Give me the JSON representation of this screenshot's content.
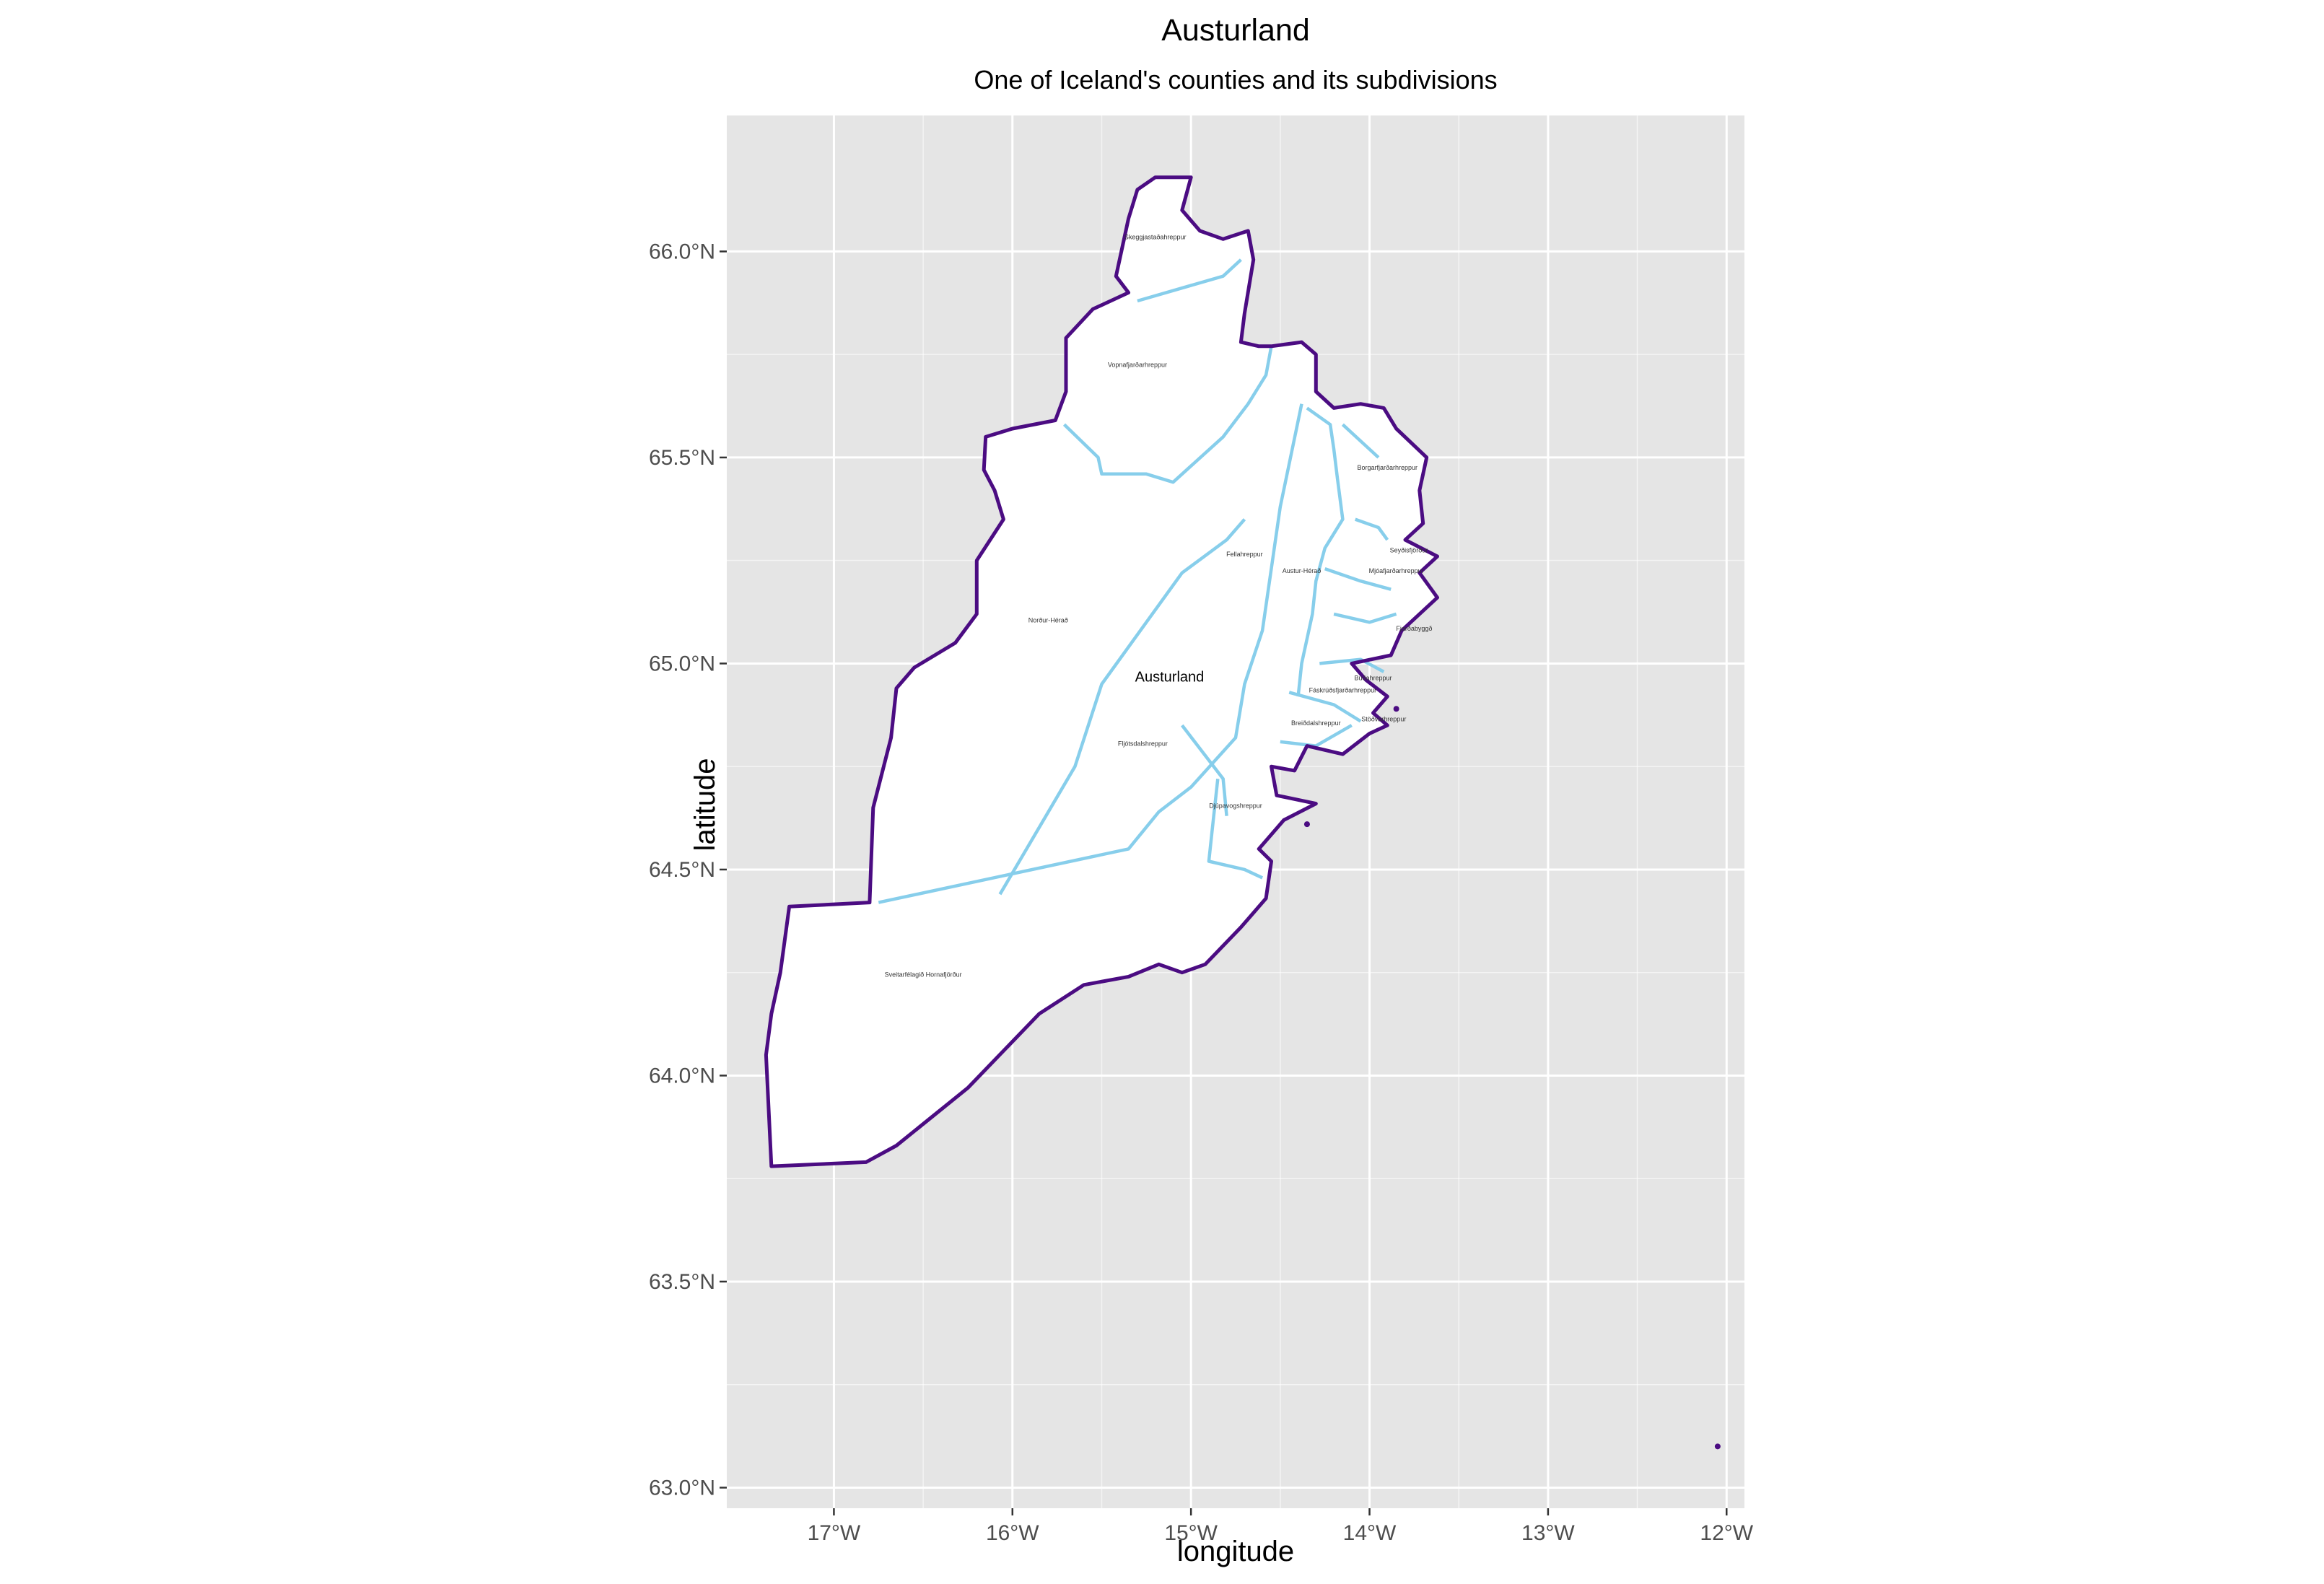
{
  "title": "Austurland",
  "subtitle": "One of Iceland's counties and its subdivisions",
  "x_axis": {
    "label": "longitude",
    "ticks": [
      "17°W",
      "16°W",
      "15°W",
      "14°W",
      "13°W",
      "12°W"
    ]
  },
  "y_axis": {
    "label": "latitude",
    "ticks": [
      "63.0°N",
      "63.5°N",
      "64.0°N",
      "64.5°N",
      "65.0°N",
      "65.5°N",
      "66.0°N"
    ]
  },
  "county_label": "Austurland",
  "subdivision_labels": [
    "Skeggjastaðahreppur",
    "Vopnafjarðarhreppur",
    "Borgarfjarðarhreppur",
    "Seyðisfjörður",
    "Fellahreppur",
    "Austur-Hérað",
    "Mjóafjarðarhreppur",
    "Norður-Hérað",
    "Fjarðabyggð",
    "Búðahreppur",
    "Fáskrúðsfjarðarhreppur",
    "Breiðdalshreppur",
    "Stöðvarhreppur",
    "Fljótsdalshreppur",
    "Djúpavogshreppur",
    "Sveitarfélagið Hornafjörður"
  ],
  "colors": {
    "panel_background": "#e5e5e5",
    "gridline": "#ffffff",
    "county_outline": "#4b0c82",
    "subdivision_outline": "#87ceeb",
    "land_fill": "#ffffff"
  },
  "map_data": {
    "lon_range": [
      -17.6,
      -11.9
    ],
    "lat_range": [
      62.95,
      66.33
    ],
    "county_outline": [
      [
        -17.35,
        63.78
      ],
      [
        -16.82,
        63.79
      ],
      [
        -16.65,
        63.83
      ],
      [
        -16.45,
        63.9
      ],
      [
        -16.25,
        63.97
      ],
      [
        -16.05,
        64.06
      ],
      [
        -15.85,
        64.15
      ],
      [
        -15.6,
        64.22
      ],
      [
        -15.35,
        64.24
      ],
      [
        -15.18,
        64.27
      ],
      [
        -15.05,
        64.25
      ],
      [
        -14.92,
        64.27
      ],
      [
        -14.72,
        64.36
      ],
      [
        -14.58,
        64.43
      ],
      [
        -14.55,
        64.52
      ],
      [
        -14.62,
        64.55
      ],
      [
        -14.48,
        64.62
      ],
      [
        -14.3,
        64.66
      ],
      [
        -14.52,
        64.68
      ],
      [
        -14.55,
        64.75
      ],
      [
        -14.42,
        64.74
      ],
      [
        -14.35,
        64.8
      ],
      [
        -14.15,
        64.78
      ],
      [
        -14.0,
        64.83
      ],
      [
        -13.9,
        64.85
      ],
      [
        -13.98,
        64.88
      ],
      [
        -13.9,
        64.92
      ],
      [
        -14.02,
        64.96
      ],
      [
        -14.1,
        65.0
      ],
      [
        -13.88,
        65.02
      ],
      [
        -13.82,
        65.08
      ],
      [
        -13.72,
        65.12
      ],
      [
        -13.62,
        65.16
      ],
      [
        -13.72,
        65.22
      ],
      [
        -13.62,
        65.26
      ],
      [
        -13.8,
        65.3
      ],
      [
        -13.7,
        65.34
      ],
      [
        -13.72,
        65.42
      ],
      [
        -13.68,
        65.5
      ],
      [
        -13.85,
        65.57
      ],
      [
        -13.92,
        65.62
      ],
      [
        -14.05,
        65.63
      ],
      [
        -14.2,
        65.62
      ],
      [
        -14.3,
        65.66
      ],
      [
        -14.3,
        65.75
      ],
      [
        -14.38,
        65.78
      ],
      [
        -14.55,
        65.77
      ],
      [
        -14.62,
        65.77
      ],
      [
        -14.72,
        65.78
      ],
      [
        -14.7,
        65.85
      ],
      [
        -14.65,
        65.98
      ],
      [
        -14.68,
        66.05
      ],
      [
        -14.82,
        66.03
      ],
      [
        -14.95,
        66.05
      ],
      [
        -15.05,
        66.1
      ],
      [
        -15.0,
        66.18
      ],
      [
        -15.2,
        66.18
      ],
      [
        -15.3,
        66.15
      ],
      [
        -15.35,
        66.08
      ],
      [
        -15.42,
        65.94
      ],
      [
        -15.35,
        65.9
      ],
      [
        -15.55,
        65.86
      ],
      [
        -15.7,
        65.79
      ],
      [
        -15.7,
        65.66
      ],
      [
        -15.76,
        65.59
      ],
      [
        -16.0,
        65.57
      ],
      [
        -16.15,
        65.55
      ],
      [
        -16.16,
        65.47
      ],
      [
        -16.1,
        65.42
      ],
      [
        -16.05,
        65.35
      ],
      [
        -16.2,
        65.25
      ],
      [
        -16.2,
        65.12
      ],
      [
        -16.32,
        65.05
      ],
      [
        -16.55,
        64.99
      ],
      [
        -16.65,
        64.94
      ],
      [
        -16.68,
        64.82
      ],
      [
        -16.78,
        64.65
      ],
      [
        -16.8,
        64.42
      ],
      [
        -17.25,
        64.41
      ],
      [
        -17.3,
        64.25
      ],
      [
        -17.35,
        64.15
      ],
      [
        -17.38,
        64.05
      ],
      [
        -17.35,
        63.78
      ]
    ],
    "subdivision_lines": [
      [
        [
          -15.3,
          65.88
        ],
        [
          -14.82,
          65.94
        ],
        [
          -14.72,
          65.98
        ]
      ],
      [
        [
          -15.71,
          65.58
        ],
        [
          -15.52,
          65.5
        ],
        [
          -15.5,
          65.46
        ],
        [
          -15.25,
          65.46
        ],
        [
          -15.1,
          65.44
        ],
        [
          -14.82,
          65.55
        ],
        [
          -14.68,
          65.63
        ],
        [
          -14.58,
          65.7
        ],
        [
          -14.55,
          65.77
        ]
      ],
      [
        [
          -14.38,
          65.63
        ],
        [
          -14.5,
          65.38
        ],
        [
          -14.6,
          65.08
        ],
        [
          -14.7,
          64.95
        ],
        [
          -14.75,
          64.82
        ],
        [
          -15.0,
          64.7
        ],
        [
          -15.18,
          64.64
        ],
        [
          -15.35,
          64.55
        ],
        [
          -16.75,
          64.42
        ]
      ],
      [
        [
          -16.07,
          64.44
        ],
        [
          -15.65,
          64.75
        ],
        [
          -15.5,
          64.95
        ],
        [
          -15.25,
          65.1
        ],
        [
          -15.05,
          65.22
        ],
        [
          -14.8,
          65.3
        ],
        [
          -14.7,
          65.35
        ]
      ],
      [
        [
          -14.35,
          65.62
        ],
        [
          -14.22,
          65.58
        ],
        [
          -14.2,
          65.52
        ],
        [
          -14.18,
          65.45
        ],
        [
          -14.15,
          65.35
        ],
        [
          -14.25,
          65.28
        ],
        [
          -14.3,
          65.2
        ],
        [
          -14.32,
          65.12
        ],
        [
          -14.38,
          65.0
        ],
        [
          -14.4,
          64.92
        ]
      ],
      [
        [
          -14.15,
          65.58
        ],
        [
          -14.0,
          65.52
        ],
        [
          -13.95,
          65.5
        ]
      ],
      [
        [
          -14.08,
          65.35
        ],
        [
          -13.95,
          65.33
        ],
        [
          -13.9,
          65.3
        ]
      ],
      [
        [
          -14.25,
          65.23
        ],
        [
          -14.05,
          65.2
        ],
        [
          -13.88,
          65.18
        ]
      ],
      [
        [
          -14.2,
          65.12
        ],
        [
          -14.0,
          65.1
        ],
        [
          -13.85,
          65.12
        ]
      ],
      [
        [
          -14.28,
          65.0
        ],
        [
          -14.05,
          65.01
        ],
        [
          -13.92,
          64.98
        ]
      ],
      [
        [
          -14.45,
          64.93
        ],
        [
          -14.2,
          64.9
        ],
        [
          -14.05,
          64.86
        ]
      ],
      [
        [
          -14.5,
          64.81
        ],
        [
          -14.3,
          64.8
        ],
        [
          -14.1,
          64.85
        ]
      ],
      [
        [
          -14.85,
          64.72
        ],
        [
          -14.88,
          64.6
        ],
        [
          -14.9,
          64.52
        ],
        [
          -14.7,
          64.5
        ],
        [
          -14.6,
          64.48
        ]
      ],
      [
        [
          -15.05,
          64.85
        ],
        [
          -14.82,
          64.72
        ],
        [
          -14.8,
          64.63
        ]
      ]
    ],
    "islets": [
      [
        -14.35,
        64.61
      ],
      [
        -13.85,
        64.89
      ],
      [
        -12.05,
        63.1
      ]
    ],
    "label_positions": [
      [
        "Skeggjastaðahreppur",
        -15.2,
        66.03
      ],
      [
        "Vopnafjarðarhreppur",
        -15.3,
        65.72
      ],
      [
        "Borgarfjarðarhreppur",
        -13.9,
        65.47
      ],
      [
        "Seyðisfjörður",
        -13.78,
        65.27
      ],
      [
        "Fellahreppur",
        -14.7,
        65.26
      ],
      [
        "Austur-Hérað",
        -14.38,
        65.22
      ],
      [
        "Mjóafjarðarhreppur",
        -13.85,
        65.22
      ],
      [
        "Norður-Hérað",
        -15.8,
        65.1
      ],
      [
        "Fjarðabyggð",
        -13.75,
        65.08
      ],
      [
        "Búðahreppur",
        -13.98,
        64.96
      ],
      [
        "Fáskrúðsfjarðarhreppur",
        -14.15,
        64.93
      ],
      [
        "Breiðdalshreppur",
        -14.3,
        64.85
      ],
      [
        "Stöðvarhreppur",
        -13.92,
        64.86
      ],
      [
        "Fljótsdalshreppur",
        -15.27,
        64.8
      ],
      [
        "Djúpavogshreppur",
        -14.75,
        64.65
      ],
      [
        "Sveitarfélagið Hornafjörður",
        -16.5,
        64.24
      ]
    ]
  }
}
